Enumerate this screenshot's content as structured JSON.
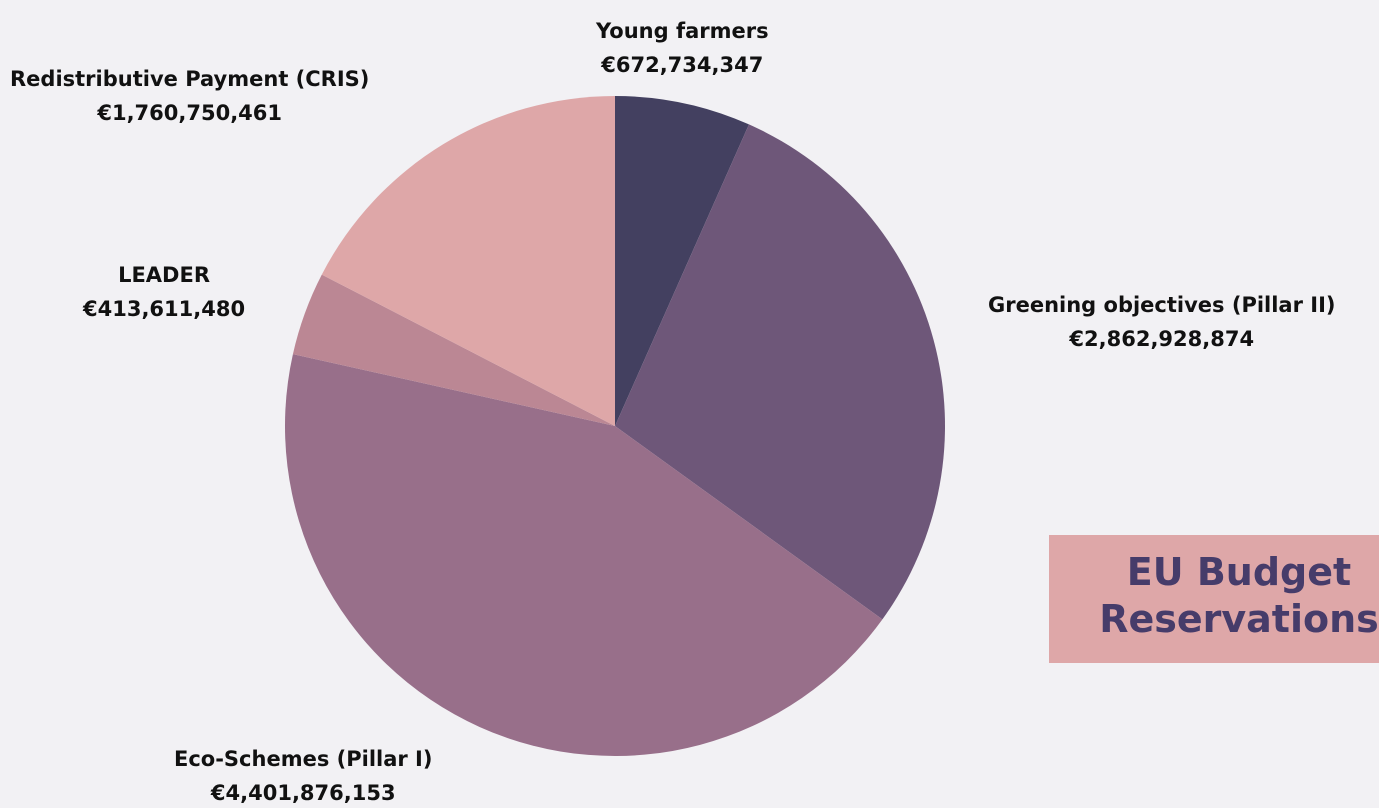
{
  "chart_data": {
    "type": "pie",
    "title": "EU Budget Reservations",
    "slices": [
      {
        "name": "Young farmers",
        "value": 672734347,
        "value_label": "€672,734,347",
        "color": "#434060"
      },
      {
        "name": "Greening objectives (Pillar II)",
        "value": 2862928874,
        "value_label": "€2,862,928,874",
        "color": "#6e5779"
      },
      {
        "name": "Eco-Schemes (Pillar I)",
        "value": 4401876153,
        "value_label": "€4,401,876,153",
        "color": "#986f8a"
      },
      {
        "name": "LEADER",
        "value": 413611480,
        "value_label": "€413,611,480",
        "color": "#bb8794"
      },
      {
        "name": "Redistributive Payment (CRIS)",
        "value": 1760750461,
        "value_label": "€1,760,750,461",
        "color": "#dea7a8"
      }
    ],
    "start_angle": "12 o'clock",
    "direction": "clockwise",
    "legend": "none"
  },
  "title_box": {
    "line1": "EU Budget",
    "line2": "Reservations",
    "background": "#dea7a8",
    "text_color": "#463c6a"
  },
  "colors": {
    "background": "#f2f1f4",
    "label_text": "#111111"
  }
}
